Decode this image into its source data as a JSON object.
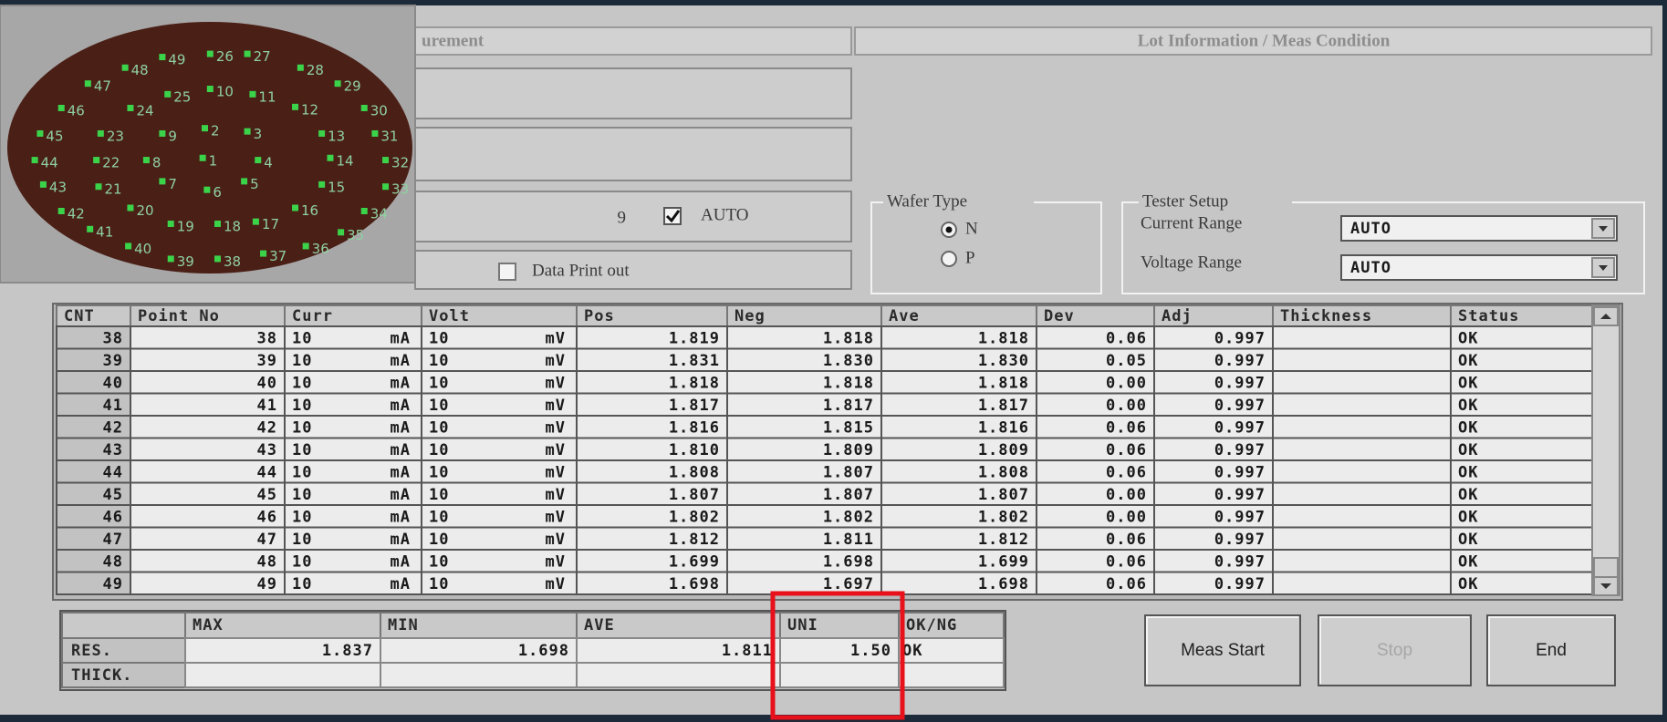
{
  "measurement_panel": {
    "title": "urement",
    "count": "9",
    "auto": "AUTO",
    "data_print_out": "Data Print out"
  },
  "lot_panel": {
    "title": "Lot Information / Meas Condition"
  },
  "wafer_type": {
    "title": "Wafer Type",
    "options": [
      "N",
      "P"
    ]
  },
  "tester_setup": {
    "title": "Tester Setup",
    "current_range_label": "Current Range",
    "current_range": "AUTO",
    "voltage_range_label": "Voltage Range",
    "voltage_range": "AUTO"
  },
  "wafer_map": {
    "points": [
      "49",
      "26",
      "27",
      "28",
      "29",
      "30",
      "48",
      "47",
      "25",
      "10",
      "11",
      "12",
      "46",
      "24",
      "9",
      "2",
      "3",
      "13",
      "31",
      "45",
      "23",
      "8",
      "1",
      "4",
      "14",
      "32",
      "44",
      "22",
      "7",
      "6",
      "5",
      "15",
      "33",
      "43",
      "21",
      "20",
      "19",
      "18",
      "17",
      "16",
      "34",
      "42",
      "41",
      "40",
      "39",
      "38",
      "37",
      "36",
      "35"
    ]
  },
  "table": {
    "headers": [
      "CNT",
      "Point No",
      "Curr",
      "Volt",
      "Pos",
      "Neg",
      "Ave",
      "Dev",
      "Adj",
      "Thickness",
      "Status"
    ],
    "rows": [
      [
        "38",
        "38",
        "10",
        "mA",
        "10",
        "mV",
        "1.819",
        "1.818",
        "1.818",
        "0.06",
        "0.997",
        "OK"
      ],
      [
        "39",
        "39",
        "10",
        "mA",
        "10",
        "mV",
        "1.831",
        "1.830",
        "1.830",
        "0.05",
        "0.997",
        "OK"
      ],
      [
        "40",
        "40",
        "10",
        "mA",
        "10",
        "mV",
        "1.818",
        "1.818",
        "1.818",
        "0.00",
        "0.997",
        "OK"
      ],
      [
        "41",
        "41",
        "10",
        "mA",
        "10",
        "mV",
        "1.817",
        "1.817",
        "1.817",
        "0.00",
        "0.997",
        "OK"
      ],
      [
        "42",
        "42",
        "10",
        "mA",
        "10",
        "mV",
        "1.816",
        "1.815",
        "1.816",
        "0.06",
        "0.997",
        "OK"
      ],
      [
        "43",
        "43",
        "10",
        "mA",
        "10",
        "mV",
        "1.810",
        "1.809",
        "1.809",
        "0.06",
        "0.997",
        "OK"
      ],
      [
        "44",
        "44",
        "10",
        "mA",
        "10",
        "mV",
        "1.808",
        "1.807",
        "1.808",
        "0.06",
        "0.997",
        "OK"
      ],
      [
        "45",
        "45",
        "10",
        "mA",
        "10",
        "mV",
        "1.807",
        "1.807",
        "1.807",
        "0.00",
        "0.997",
        "OK"
      ],
      [
        "46",
        "46",
        "10",
        "mA",
        "10",
        "mV",
        "1.802",
        "1.802",
        "1.802",
        "0.00",
        "0.997",
        "OK"
      ],
      [
        "47",
        "47",
        "10",
        "mA",
        "10",
        "mV",
        "1.812",
        "1.811",
        "1.812",
        "0.06",
        "0.997",
        "OK"
      ],
      [
        "48",
        "48",
        "10",
        "mA",
        "10",
        "mV",
        "1.699",
        "1.698",
        "1.699",
        "0.06",
        "0.997",
        "OK"
      ],
      [
        "49",
        "49",
        "10",
        "mA",
        "10",
        "mV",
        "1.698",
        "1.697",
        "1.698",
        "0.06",
        "0.997",
        "OK"
      ]
    ]
  },
  "summary": {
    "headers": [
      "MAX",
      "MIN",
      "AVE",
      "UNI",
      "OK/NG"
    ],
    "rows": [
      {
        "label": "RES.",
        "cells": [
          "1.837",
          "1.698",
          "1.811",
          "1.50",
          "OK"
        ]
      },
      {
        "label": "THICK."
      }
    ]
  },
  "buttons": [
    "Meas Start",
    "Stop",
    "End"
  ]
}
